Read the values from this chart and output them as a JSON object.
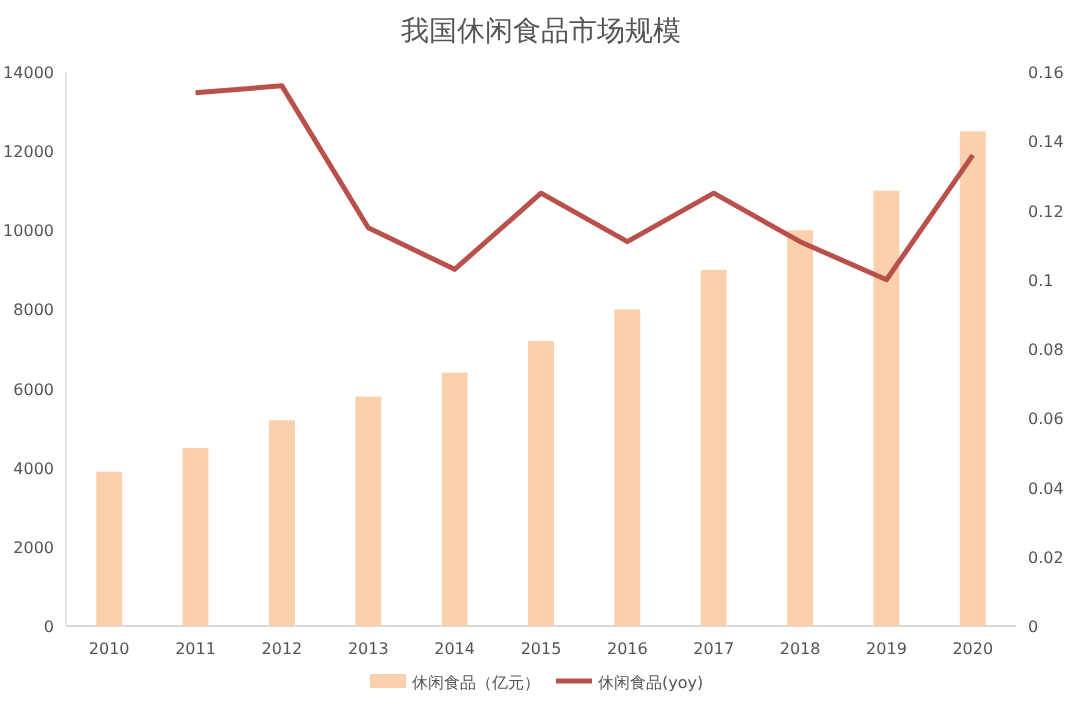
{
  "chart_data": {
    "type": "bar",
    "title": "我国休闲食品市场规模",
    "categories": [
      "2010",
      "2011",
      "2012",
      "2013",
      "2014",
      "2015",
      "2016",
      "2017",
      "2018",
      "2019",
      "2020"
    ],
    "series": [
      {
        "name": "休闲食品（亿元）",
        "color": "#fad0ad",
        "values": [
          3900,
          4500,
          5200,
          5800,
          6400,
          7200,
          8000,
          9000,
          10000,
          11000,
          12500
        ]
      },
      {
        "name": "休闲食品(yoy)",
        "type": "line",
        "axis": "y2",
        "color": "#b9504b",
        "values": [
          null,
          0.154,
          0.156,
          0.115,
          0.103,
          0.125,
          0.111,
          0.125,
          0.111,
          0.1,
          0.136
        ]
      }
    ],
    "ylim": [
      0,
      14000
    ],
    "yticks": [
      0,
      2000,
      4000,
      6000,
      8000,
      10000,
      12000,
      14000
    ],
    "y2lim": [
      0,
      0.16
    ],
    "y2ticks": [
      0,
      0.02,
      0.04,
      0.06,
      0.08,
      0.1,
      0.12,
      0.14,
      0.16
    ],
    "grid": false,
    "legend": "bottom"
  }
}
